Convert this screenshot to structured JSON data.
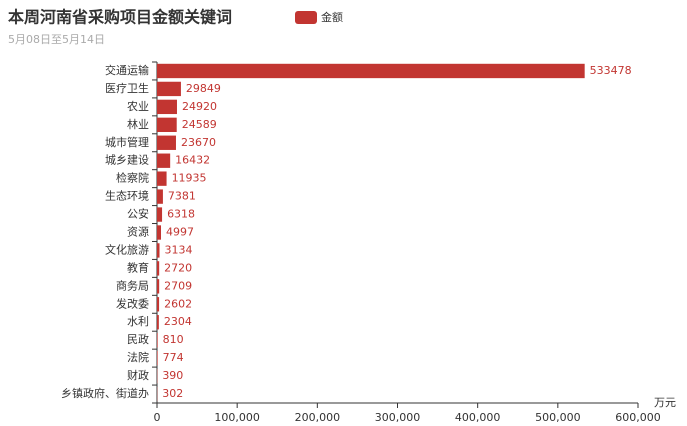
{
  "chart_data": {
    "type": "hbar",
    "title": "本周河南省采购项目金额关键词",
    "subtitle": "5月08日至5月14日",
    "x_label": "万元",
    "legend": "top",
    "categories": [
      "交通运输",
      "医疗卫生",
      "农业",
      "林业",
      "城市管理",
      "城乡建设",
      "检察院",
      "生态环境",
      "公安",
      "资源",
      "文化旅游",
      "教育",
      "商务局",
      "发改委",
      "水利",
      "民政",
      "法院",
      "财政",
      "乡镇政府、街道办"
    ],
    "series": [
      {
        "name": "金额",
        "color": "#c23531",
        "values": [
          533478,
          29849,
          24920,
          24589,
          23670,
          16432,
          11935,
          7381,
          6318,
          4997,
          3134,
          2720,
          2709,
          2602,
          2304,
          810,
          774,
          390,
          302
        ]
      }
    ],
    "xlim": [
      0,
      600000
    ],
    "xticks": [
      0,
      {
        "value": 100000,
        "label": "100,000"
      },
      {
        "value": 200000,
        "label": "200,000"
      },
      {
        "value": 300000,
        "label": "300,000"
      },
      {
        "value": 400000,
        "label": "400,000"
      },
      {
        "value": 500000,
        "label": "500,000"
      },
      {
        "value": 600000,
        "label": "600,000"
      }
    ]
  }
}
